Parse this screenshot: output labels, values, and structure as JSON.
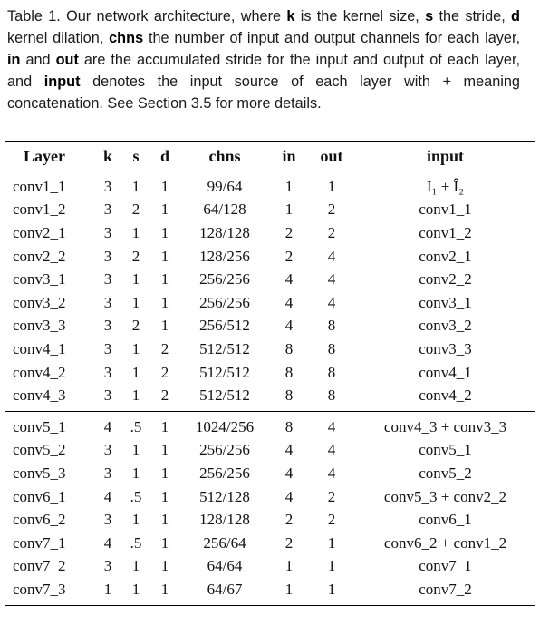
{
  "caption": {
    "label": "Table 1.",
    "segments": [
      {
        "t": " Our network architecture, where ",
        "b": false
      },
      {
        "t": "k",
        "b": true
      },
      {
        "t": " is the kernel size, ",
        "b": false
      },
      {
        "t": "s",
        "b": true
      },
      {
        "t": " the stride, ",
        "b": false
      },
      {
        "t": "d",
        "b": true
      },
      {
        "t": " kernel dilation, ",
        "b": false
      },
      {
        "t": "chns",
        "b": true
      },
      {
        "t": " the number of input and output channels for each layer, ",
        "b": false
      },
      {
        "t": "in",
        "b": true
      },
      {
        "t": " and ",
        "b": false
      },
      {
        "t": "out",
        "b": true
      },
      {
        "t": " are the accumulated stride for the input and output of each layer, and ",
        "b": false
      },
      {
        "t": "input",
        "b": true
      },
      {
        "t": " denotes the input source of each layer with + meaning concatenation. See Section 3.5 for more details.",
        "b": false
      }
    ]
  },
  "table": {
    "headers": [
      "Layer",
      "k",
      "s",
      "d",
      "chns",
      "in",
      "out",
      "input"
    ],
    "groups": [
      [
        [
          "conv1_1",
          "3",
          "1",
          "1",
          "99/64",
          "1",
          "1",
          "I₁ + Î₂"
        ],
        [
          "conv1_2",
          "3",
          "2",
          "1",
          "64/128",
          "1",
          "2",
          "conv1_1"
        ],
        [
          "conv2_1",
          "3",
          "1",
          "1",
          "128/128",
          "2",
          "2",
          "conv1_2"
        ],
        [
          "conv2_2",
          "3",
          "2",
          "1",
          "128/256",
          "2",
          "4",
          "conv2_1"
        ],
        [
          "conv3_1",
          "3",
          "1",
          "1",
          "256/256",
          "4",
          "4",
          "conv2_2"
        ],
        [
          "conv3_2",
          "3",
          "1",
          "1",
          "256/256",
          "4",
          "4",
          "conv3_1"
        ],
        [
          "conv3_3",
          "3",
          "2",
          "1",
          "256/512",
          "4",
          "8",
          "conv3_2"
        ],
        [
          "conv4_1",
          "3",
          "1",
          "2",
          "512/512",
          "8",
          "8",
          "conv3_3"
        ],
        [
          "conv4_2",
          "3",
          "1",
          "2",
          "512/512",
          "8",
          "8",
          "conv4_1"
        ],
        [
          "conv4_3",
          "3",
          "1",
          "2",
          "512/512",
          "8",
          "8",
          "conv4_2"
        ]
      ],
      [
        [
          "conv5_1",
          "4",
          ".5",
          "1",
          "1024/256",
          "8",
          "4",
          "conv4_3 + conv3_3"
        ],
        [
          "conv5_2",
          "3",
          "1",
          "1",
          "256/256",
          "4",
          "4",
          "conv5_1"
        ],
        [
          "conv5_3",
          "3",
          "1",
          "1",
          "256/256",
          "4",
          "4",
          "conv5_2"
        ],
        [
          "conv6_1",
          "4",
          ".5",
          "1",
          "512/128",
          "4",
          "2",
          "conv5_3 + conv2_2"
        ],
        [
          "conv6_2",
          "3",
          "1",
          "1",
          "128/128",
          "2",
          "2",
          "conv6_1"
        ],
        [
          "conv7_1",
          "4",
          ".5",
          "1",
          "256/64",
          "2",
          "1",
          "conv6_2 + conv1_2"
        ],
        [
          "conv7_2",
          "3",
          "1",
          "1",
          "64/64",
          "1",
          "1",
          "conv7_1"
        ],
        [
          "conv7_3",
          "1",
          "1",
          "1",
          "64/67",
          "1",
          "1",
          "conv7_2"
        ]
      ]
    ]
  }
}
